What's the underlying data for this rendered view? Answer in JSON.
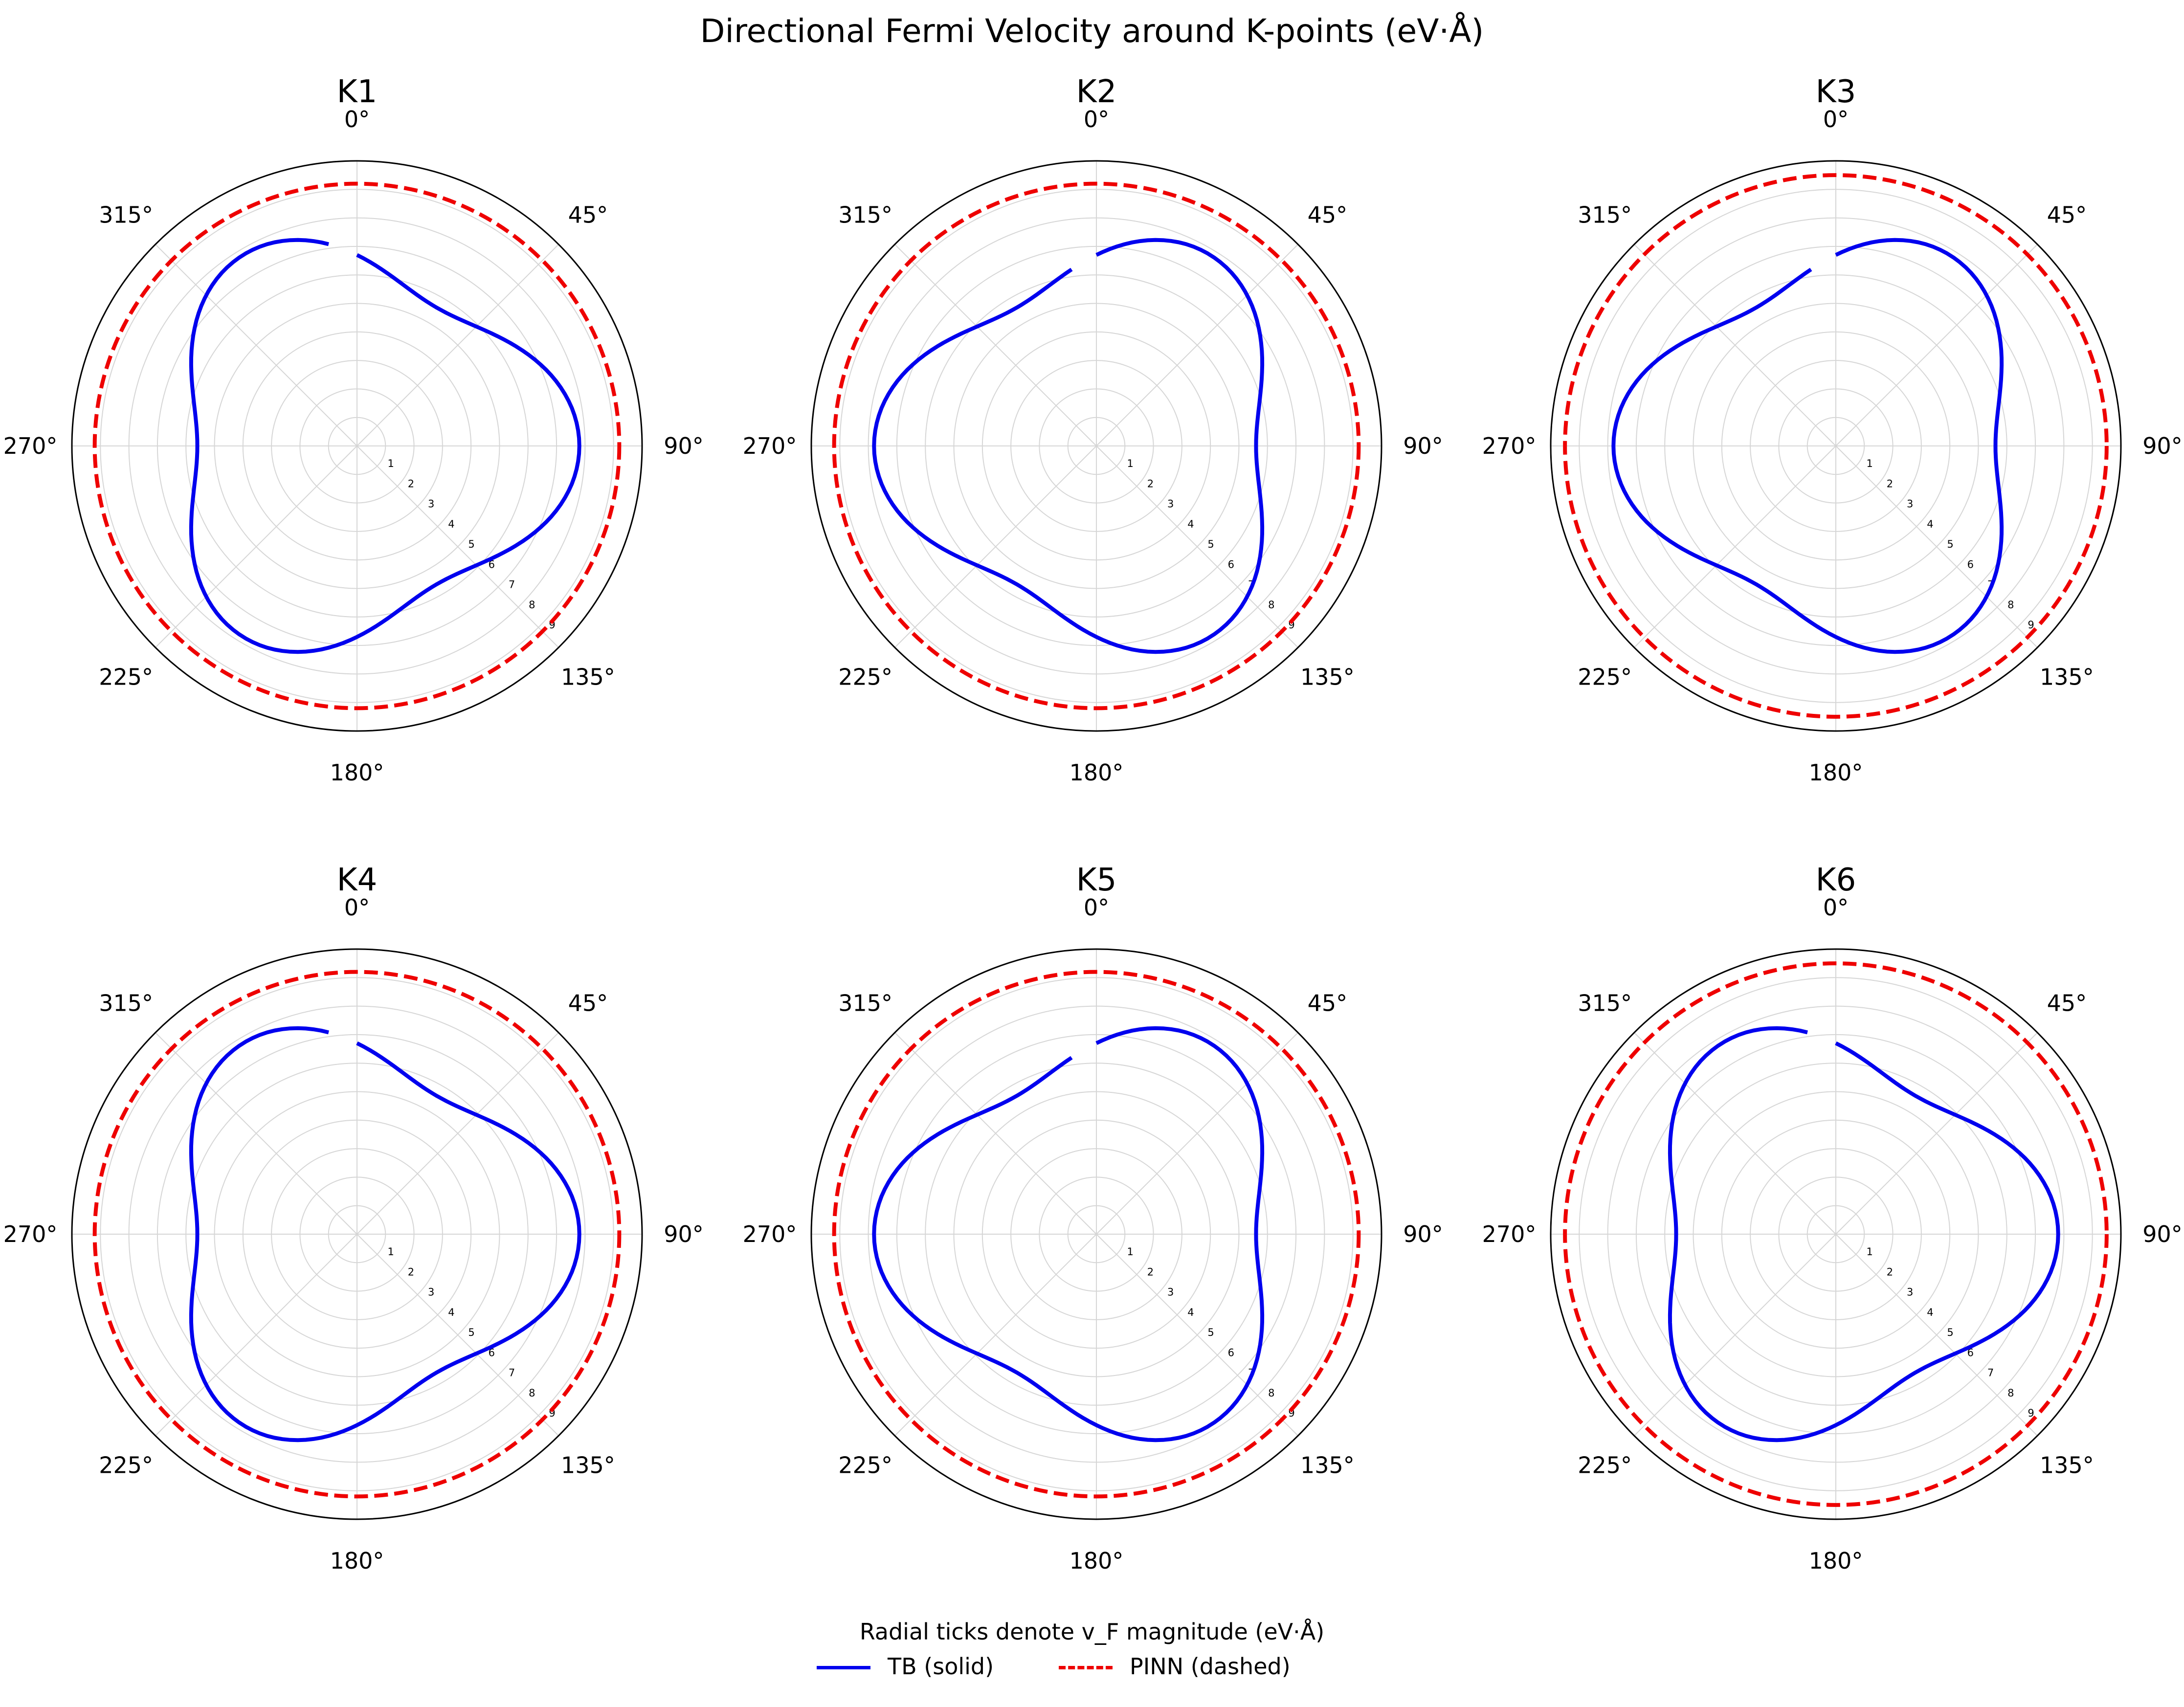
{
  "chart_data": {
    "type": "polar-line",
    "suptitle": "Directional Fermi Velocity around K-points (eV·Å)",
    "angle_ticks": [
      "0°",
      "45°",
      "90°",
      "135°",
      "180°",
      "225°",
      "270°",
      "315°"
    ],
    "radial_ticks": [
      "1",
      "2",
      "3",
      "4",
      "5",
      "6",
      "7",
      "8",
      "9"
    ],
    "rlim": [
      0,
      10
    ],
    "direction": "clockwise",
    "zero_location": "top",
    "grid": true,
    "colors": {
      "tb": "#0000ee",
      "pinn": "#ee0000",
      "grid": "#d6d6d6"
    },
    "legend": {
      "title": "Radial ticks denote v_F magnitude (eV·Å)",
      "location": "bottom-center",
      "entries": [
        {
          "label": "TB (solid)",
          "style": "solid",
          "color": "#0000ee"
        },
        {
          "label": "PINN (dashed)",
          "style": "dashed",
          "color": "#ee0000"
        }
      ]
    },
    "panels": [
      {
        "title": "K1",
        "tb": {
          "mean": 6.7,
          "amp": 1.1,
          "phase_deg": 90
        },
        "pinn": {
          "r": 9.2
        }
      },
      {
        "title": "K2",
        "tb": {
          "mean": 6.7,
          "amp": 1.1,
          "phase_deg": 30
        },
        "pinn": {
          "r": 9.2
        }
      },
      {
        "title": "K3",
        "tb": {
          "mean": 6.7,
          "amp": 1.1,
          "phase_deg": 30
        },
        "pinn": {
          "r": 9.5
        }
      },
      {
        "title": "K4",
        "tb": {
          "mean": 6.7,
          "amp": 1.1,
          "phase_deg": 90
        },
        "pinn": {
          "r": 9.2
        }
      },
      {
        "title": "K5",
        "tb": {
          "mean": 6.7,
          "amp": 1.1,
          "phase_deg": 30
        },
        "pinn": {
          "r": 9.2
        }
      },
      {
        "title": "K6",
        "tb": {
          "mean": 6.7,
          "amp": 1.1,
          "phase_deg": 90
        },
        "pinn": {
          "r": 9.5
        }
      }
    ]
  }
}
